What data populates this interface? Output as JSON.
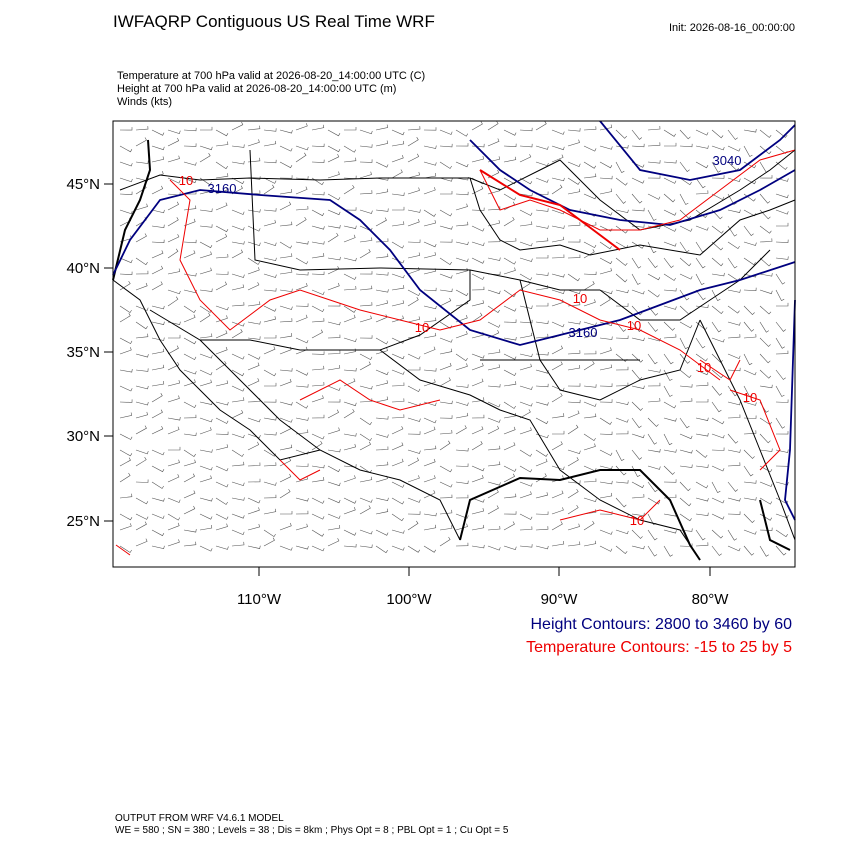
{
  "header": {
    "title": "IWFAQRP Contiguous US Real Time WRF",
    "init": "Init: 2026-08-16_00:00:00"
  },
  "fields": [
    "Temperature at 700 hPa valid at 2026-08-20_14:00:00 UTC   (C)",
    "Height at 700 hPa valid at 2026-08-20_14:00:00 UTC   (m)",
    "Winds   (kts)"
  ],
  "map": {
    "lat_labels": [
      "45°N",
      "40°N",
      "35°N",
      "30°N",
      "25°N"
    ],
    "lon_labels": [
      "110°W",
      "100°W",
      "90°W",
      "80°W"
    ],
    "height_labels": [
      "3160",
      "3160",
      "3040"
    ],
    "temperature_labels": [
      "10",
      "10",
      "10",
      "10",
      "10",
      "10",
      "10"
    ]
  },
  "legend": [
    "Height Contours: 2800 to 3460 by 60",
    "Temperature Contours: -15 to 25 by 5"
  ],
  "footer": [
    "OUTPUT FROM WRF V4.6.1 MODEL",
    "WE = 580 ; SN = 380 ; Levels = 38 ; Dis = 8km ; Phys Opt = 8 ; PBL Opt = 1 ; Cu Opt = 5"
  ]
}
